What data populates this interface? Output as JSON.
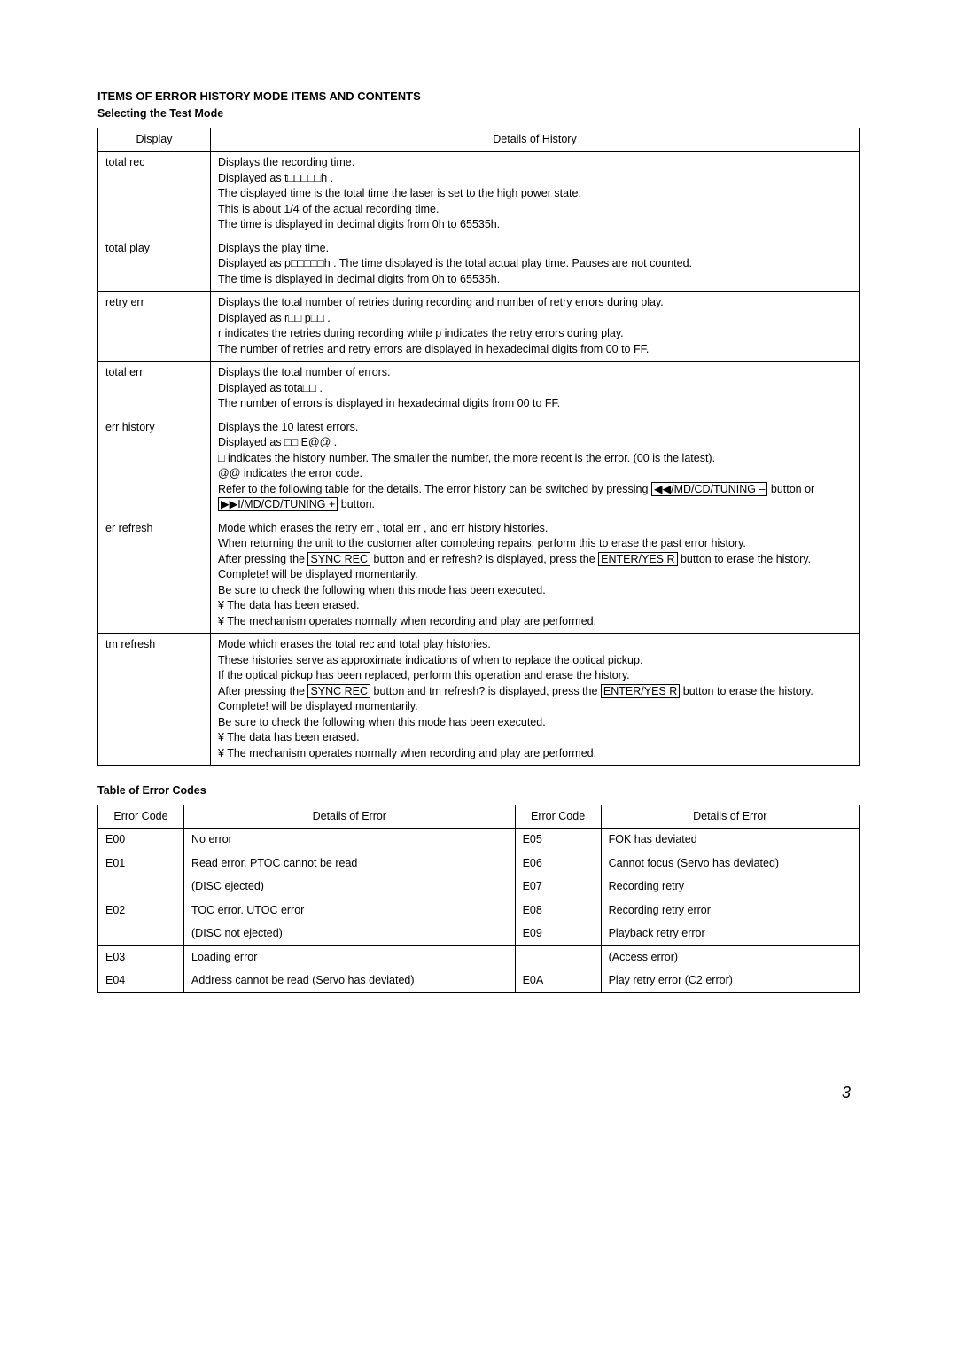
{
  "heading": {
    "title": "ITEMS OF ERROR HISTORY MODE ITEMS AND CONTENTS",
    "subtitle": "Selecting the Test Mode"
  },
  "history_table": {
    "headers": [
      "Display",
      "Details of History"
    ],
    "rows": [
      {
        "display": "total rec",
        "details": "Displays the recording time.\nDisplayed as t□□□□□h .\nThe displayed time is the total time the laser is set to the high power state.\nThis is about 1/4 of the actual recording time.\nThe time is displayed in decimal digits from 0h to 65535h."
      },
      {
        "display": "total play",
        "details": "Displays the play time.\nDisplayed as p□□□□□h . The time displayed is the total actual play time. Pauses are not counted.\nThe time is displayed in decimal digits from 0h to 65535h."
      },
      {
        "display": "retry err",
        "details": "Displays the total number of retries during recording and number of retry errors during play.\nDisplayed as r□□ p□□ .\n r  indicates the retries during recording while  p  indicates the retry errors during play.\nThe number of retries and retry errors are displayed in hexadecimal digits from 00 to FF."
      },
      {
        "display": "total err",
        "details": "Displays the total number of errors.\nDisplayed as  tota□□ .\nThe number of errors is displayed in hexadecimal digits from 00 to FF."
      },
      {
        "display": "err history",
        "details_pre": "Displays the 10 latest errors.\nDisplayed as  □□ E@@ .\n□ indicates the history number. The smaller the number, the more recent is the error. (00 is the latest).\n@@ indicates the error code.\nRefer to the following table for the details. The error history can be switched by pressing ",
        "btn1": "◀◀/MD/CD/TUNING –",
        "details_mid": " button or ",
        "btn2": "▶▶I/MD/CD/TUNING +",
        "details_post": " button."
      },
      {
        "display": "er refresh",
        "details_pre": "Mode which erases the  retry err ,  total err , and  err history  histories.\nWhen returning the unit to the customer after completing repairs, perform this to erase the past error history.\nAfter pressing the ",
        "btn1": "SYNC REC",
        "details_mid": " button and  er refresh?  is displayed, press the ",
        "btn2": "ENTER/YES R",
        "details_post": " button to erase the history.\n Complete!  will be displayed momentarily.\nBe sure to check the following when this mode has been executed.\n¥ The data has been erased.\n¥ The mechanism operates normally when recording and play are performed."
      },
      {
        "display": "tm refresh",
        "details_pre": "Mode which erases the  total rec  and  total play  histories.\nThese histories serve as approximate indications of when to replace the optical pickup.\nIf the optical pickup has been replaced, perform this operation and erase the history.\nAfter pressing the ",
        "btn1": "SYNC REC",
        "details_mid": " button and  tm refresh?  is displayed, press the ",
        "btn2": "ENTER/YES R",
        "details_post": " button to erase the history.\n Complete!  will be displayed momentarily.\nBe sure to check the following when this mode has been executed.\n¥ The data has been erased.\n¥ The mechanism operates normally when recording and play are performed."
      }
    ]
  },
  "error_heading": "Table of Error Codes",
  "error_table": {
    "headers": [
      "Error Code",
      "Details of Error",
      "Error Code",
      "Details of Error"
    ],
    "rows": [
      [
        "E00",
        "No error",
        "E05",
        "FOK has deviated"
      ],
      [
        "E01",
        "Read error. PTOC cannot be read",
        "E06",
        "Cannot focus (Servo has deviated)"
      ],
      [
        "",
        "(DISC ejected)",
        "E07",
        "Recording retry"
      ],
      [
        "E02",
        "TOC error. UTOC error",
        "E08",
        "Recording retry error"
      ],
      [
        "",
        "(DISC not ejected)",
        "E09",
        "Playback retry error"
      ],
      [
        "E03",
        "Loading error",
        "",
        "(Access error)"
      ],
      [
        "E04",
        "Address cannot be read (Servo has deviated)",
        "E0A",
        "Play retry error (C2 error)"
      ]
    ]
  },
  "page_number": "3"
}
